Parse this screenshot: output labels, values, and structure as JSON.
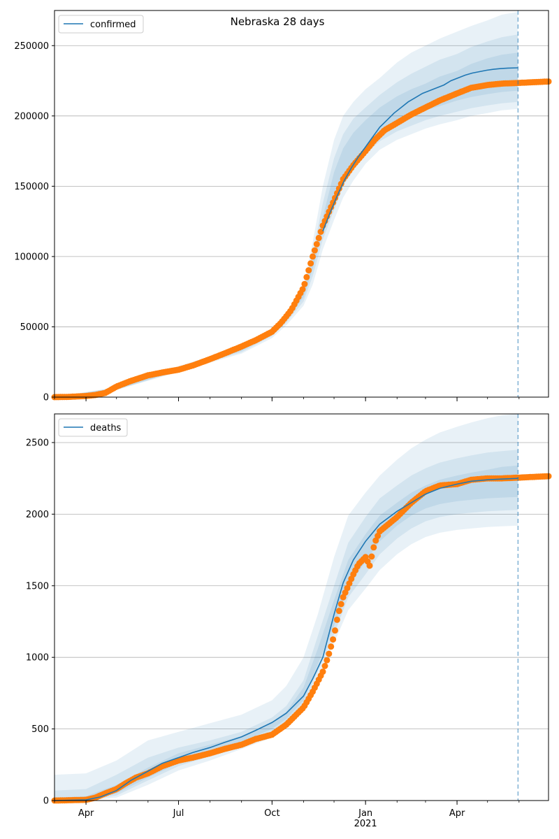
{
  "figure": {
    "title": "Nebraska 28 days"
  },
  "colors": {
    "model": "#1f77b4",
    "observed": "#ff7f0e",
    "grid": "#b0b0b0",
    "band": "#1f77b4"
  },
  "x_axis": {
    "start": "2020-03-01",
    "end": "2021-06-30",
    "forecast_date": "2021-05-31",
    "ticks": [
      {
        "date": "2020-04-01",
        "label": "Apr"
      },
      {
        "date": "2020-07-01",
        "label": "Jul"
      },
      {
        "date": "2020-10-01",
        "label": "Oct"
      },
      {
        "date": "2021-01-01",
        "label": "Jan"
      },
      {
        "date": "2021-04-01",
        "label": "Apr"
      }
    ],
    "year_label": {
      "date": "2021-01-01",
      "label": "2021"
    }
  },
  "chart_data": [
    {
      "type": "line",
      "legend": "confirmed",
      "legend_position": "upper left",
      "ylim": [
        0,
        275000
      ],
      "yticks": [
        0,
        50000,
        100000,
        150000,
        200000,
        250000
      ],
      "grid": "horizontal",
      "model": {
        "dates": [
          "2020-11-20",
          "2020-11-27",
          "2020-12-04",
          "2020-12-11",
          "2020-12-18",
          "2020-12-25",
          "2021-01-01",
          "2021-01-08",
          "2021-01-15",
          "2021-01-22",
          "2021-01-29",
          "2021-02-05",
          "2021-02-12",
          "2021-02-19",
          "2021-02-26",
          "2021-03-05",
          "2021-03-12",
          "2021-03-19",
          "2021-03-26",
          "2021-04-02",
          "2021-04-09",
          "2021-04-16",
          "2021-04-23",
          "2021-04-30",
          "2021-05-07",
          "2021-05-14",
          "2021-05-21",
          "2021-05-31"
        ],
        "median": [
          118000,
          131000,
          143000,
          154000,
          163000,
          171000,
          178000,
          185000,
          192000,
          197000,
          202000,
          206000,
          210000,
          213000,
          216000,
          218000,
          220000,
          222000,
          225000,
          227000,
          229000,
          230500,
          231500,
          232500,
          233200,
          233700,
          234000,
          234200
        ]
      },
      "bands": [
        {
          "dates": [
            "2020-03-01",
            "2020-05-01",
            "2020-07-01",
            "2020-09-01",
            "2020-10-01",
            "2020-10-15",
            "2020-11-01",
            "2020-11-10",
            "2020-11-20",
            "2020-12-01",
            "2020-12-10",
            "2020-12-20",
            "2021-01-01",
            "2021-01-15",
            "2021-02-01",
            "2021-02-15",
            "2021-03-01",
            "2021-03-15",
            "2021-04-01",
            "2021-04-15",
            "2021-05-01",
            "2021-05-15",
            "2021-05-31"
          ],
          "lower": [
            0,
            5000,
            18000,
            31000,
            42000,
            51000,
            65000,
            80000,
            105000,
            126000,
            142000,
            154000,
            166000,
            176000,
            183000,
            187000,
            191000,
            194000,
            197000,
            200000,
            202000,
            204000,
            205000
          ],
          "upper": [
            0,
            7000,
            22000,
            36000,
            49000,
            60000,
            79000,
            110000,
            150000,
            183000,
            200000,
            210000,
            219000,
            227000,
            238000,
            245000,
            250000,
            255000,
            260000,
            264000,
            268000,
            272000,
            274000
          ]
        },
        {
          "dates": [
            "2020-03-01",
            "2020-05-01",
            "2020-07-01",
            "2020-09-01",
            "2020-10-01",
            "2020-10-15",
            "2020-11-01",
            "2020-11-10",
            "2020-11-20",
            "2020-12-01",
            "2020-12-10",
            "2020-12-20",
            "2021-01-01",
            "2021-01-15",
            "2021-02-01",
            "2021-02-15",
            "2021-03-01",
            "2021-03-15",
            "2021-04-01",
            "2021-04-15",
            "2021-05-01",
            "2021-05-15",
            "2021-05-31"
          ],
          "lower": [
            0,
            5200,
            18500,
            32000,
            43500,
            53000,
            68000,
            86000,
            112000,
            133000,
            150000,
            162000,
            173000,
            182000,
            189000,
            193000,
            197000,
            200000,
            203000,
            205500,
            207500,
            209000,
            210000
          ],
          "upper": [
            0,
            6800,
            21500,
            35000,
            47500,
            58000,
            76000,
            102000,
            138000,
            170000,
            187000,
            198000,
            206000,
            215000,
            224000,
            230000,
            235000,
            240000,
            244000,
            249000,
            253000,
            256000,
            258000
          ]
        },
        {
          "dates": [
            "2020-03-01",
            "2020-05-01",
            "2020-07-01",
            "2020-09-01",
            "2020-10-01",
            "2020-10-15",
            "2020-11-01",
            "2020-11-10",
            "2020-11-20",
            "2020-12-01",
            "2020-12-10",
            "2020-12-20",
            "2021-01-01",
            "2021-01-15",
            "2021-02-01",
            "2021-02-15",
            "2021-03-01",
            "2021-03-15",
            "2021-04-01",
            "2021-04-15",
            "2021-05-01",
            "2021-05-15",
            "2021-05-31"
          ],
          "lower": [
            0,
            5500,
            19000,
            33000,
            45000,
            55000,
            71000,
            91000,
            118000,
            140000,
            157000,
            168000,
            179000,
            189000,
            196000,
            200000,
            204000,
            207000,
            211000,
            213500,
            215500,
            217000,
            218000
          ],
          "upper": [
            0,
            6500,
            21000,
            34000,
            46500,
            56500,
            73500,
            96000,
            128000,
            160000,
            177000,
            188000,
            197000,
            206000,
            214000,
            219000,
            223000,
            228000,
            232000,
            237000,
            241000,
            243500,
            245000
          ]
        }
      ],
      "observed": {
        "dates": [
          "2020-03-01",
          "2020-03-15",
          "2020-04-01",
          "2020-04-10",
          "2020-04-20",
          "2020-05-01",
          "2020-05-15",
          "2020-06-01",
          "2020-06-15",
          "2020-07-01",
          "2020-07-15",
          "2020-08-01",
          "2020-08-15",
          "2020-09-01",
          "2020-09-15",
          "2020-10-01",
          "2020-10-10",
          "2020-10-20",
          "2020-11-01",
          "2020-11-10",
          "2020-11-20",
          "2020-12-01",
          "2020-12-10",
          "2020-12-20",
          "2021-01-01",
          "2021-01-10",
          "2021-01-20",
          "2021-02-01",
          "2021-02-15",
          "2021-03-01",
          "2021-03-15",
          "2021-04-01",
          "2021-04-15",
          "2021-05-01",
          "2021-05-15",
          "2021-06-01",
          "2021-06-15",
          "2021-06-30"
        ],
        "values": [
          0,
          200,
          800,
          1500,
          3000,
          7500,
          11500,
          15500,
          17500,
          19500,
          22500,
          27000,
          31000,
          36000,
          40500,
          46500,
          53000,
          62000,
          78000,
          100000,
          122000,
          140000,
          155000,
          165000,
          175000,
          183000,
          190000,
          195000,
          201000,
          206000,
          211000,
          216000,
          220000,
          222000,
          223000,
          223500,
          224000,
          224500
        ]
      }
    },
    {
      "type": "line",
      "legend": "deaths",
      "legend_position": "upper left",
      "ylim": [
        0,
        2700
      ],
      "yticks": [
        0,
        500,
        1000,
        1500,
        2000,
        2500
      ],
      "grid": "horizontal",
      "model": {
        "dates": [
          "2020-03-01",
          "2020-04-01",
          "2020-04-15",
          "2020-05-01",
          "2020-05-15",
          "2020-06-01",
          "2020-06-15",
          "2020-07-01",
          "2020-07-15",
          "2020-08-01",
          "2020-08-15",
          "2020-09-01",
          "2020-09-15",
          "2020-10-01",
          "2020-10-15",
          "2020-11-01",
          "2020-11-10",
          "2020-11-20",
          "2020-12-01",
          "2020-12-10",
          "2020-12-20",
          "2021-01-01",
          "2021-01-15",
          "2021-02-01",
          "2021-02-15",
          "2021-03-01",
          "2021-03-15",
          "2021-04-01",
          "2021-04-15",
          "2021-05-01",
          "2021-05-15",
          "2021-05-31"
        ],
        "median": [
          0,
          5,
          25,
          70,
          140,
          205,
          260,
          300,
          335,
          370,
          405,
          445,
          490,
          545,
          610,
          730,
          850,
          1000,
          1300,
          1520,
          1680,
          1810,
          1930,
          2020,
          2080,
          2140,
          2180,
          2210,
          2230,
          2240,
          2245,
          2250
        ]
      },
      "bands": [
        {
          "dates": [
            "2020-03-01",
            "2020-04-01",
            "2020-05-01",
            "2020-06-01",
            "2020-07-01",
            "2020-08-01",
            "2020-09-01",
            "2020-10-01",
            "2020-10-15",
            "2020-11-01",
            "2020-11-15",
            "2020-12-01",
            "2020-12-15",
            "2021-01-01",
            "2021-01-15",
            "2021-02-01",
            "2021-02-15",
            "2021-03-01",
            "2021-03-15",
            "2021-04-01",
            "2021-04-15",
            "2021-05-01",
            "2021-05-15",
            "2021-05-31"
          ],
          "lower": [
            0,
            0,
            20,
            110,
            210,
            280,
            360,
            440,
            510,
            640,
            840,
            1100,
            1330,
            1480,
            1610,
            1720,
            1790,
            1840,
            1870,
            1890,
            1900,
            1910,
            1915,
            1920
          ],
          "upper": [
            180,
            190,
            280,
            420,
            480,
            540,
            600,
            700,
            800,
            1000,
            1300,
            1700,
            1990,
            2150,
            2270,
            2380,
            2460,
            2520,
            2570,
            2610,
            2640,
            2670,
            2690,
            2700
          ]
        },
        {
          "dates": [
            "2020-03-01",
            "2020-04-01",
            "2020-05-01",
            "2020-06-01",
            "2020-07-01",
            "2020-08-01",
            "2020-09-01",
            "2020-10-01",
            "2020-10-15",
            "2020-11-01",
            "2020-11-15",
            "2020-12-01",
            "2020-12-15",
            "2021-01-01",
            "2021-01-15",
            "2021-02-01",
            "2021-02-15",
            "2021-03-01",
            "2021-03-15",
            "2021-04-01",
            "2021-04-15",
            "2021-05-01",
            "2021-05-15",
            "2021-05-31"
          ],
          "lower": [
            0,
            0,
            35,
            140,
            240,
            310,
            390,
            470,
            540,
            670,
            900,
            1160,
            1420,
            1580,
            1720,
            1830,
            1900,
            1950,
            1980,
            2000,
            2010,
            2020,
            2025,
            2030
          ],
          "upper": [
            70,
            80,
            180,
            300,
            370,
            420,
            480,
            580,
            660,
            840,
            1150,
            1500,
            1800,
            1980,
            2110,
            2200,
            2270,
            2320,
            2360,
            2390,
            2410,
            2430,
            2440,
            2450
          ]
        },
        {
          "dates": [
            "2020-03-01",
            "2020-04-01",
            "2020-05-01",
            "2020-06-01",
            "2020-07-01",
            "2020-08-01",
            "2020-09-01",
            "2020-10-01",
            "2020-10-15",
            "2020-11-01",
            "2020-11-15",
            "2020-12-01",
            "2020-12-15",
            "2021-01-01",
            "2021-01-15",
            "2021-02-01",
            "2021-02-15",
            "2021-03-01",
            "2021-03-15",
            "2021-04-01",
            "2021-04-15",
            "2021-05-01",
            "2021-05-15",
            "2021-05-31"
          ],
          "lower": [
            0,
            0,
            50,
            160,
            260,
            330,
            410,
            500,
            570,
            700,
            950,
            1220,
            1490,
            1670,
            1810,
            1920,
            1990,
            2040,
            2070,
            2090,
            2100,
            2110,
            2115,
            2120
          ],
          "upper": [
            20,
            30,
            110,
            230,
            330,
            390,
            450,
            550,
            620,
            790,
            1060,
            1400,
            1680,
            1860,
            1990,
            2080,
            2150,
            2200,
            2240,
            2270,
            2290,
            2310,
            2330,
            2340
          ]
        }
      ],
      "observed": {
        "dates": [
          "2020-03-01",
          "2020-04-01",
          "2020-04-10",
          "2020-04-20",
          "2020-05-01",
          "2020-05-10",
          "2020-05-20",
          "2020-06-01",
          "2020-06-15",
          "2020-07-01",
          "2020-07-15",
          "2020-08-01",
          "2020-08-15",
          "2020-09-01",
          "2020-09-15",
          "2020-10-01",
          "2020-10-15",
          "2020-11-01",
          "2020-11-10",
          "2020-11-20",
          "2020-11-25",
          "2020-12-01",
          "2020-12-05",
          "2020-12-10",
          "2020-12-15",
          "2020-12-20",
          "2020-12-25",
          "2021-01-01",
          "2021-01-05",
          "2021-01-10",
          "2021-01-15",
          "2021-02-01",
          "2021-02-15",
          "2021-03-01",
          "2021-03-15",
          "2021-04-01",
          "2021-04-15",
          "2021-05-01",
          "2021-05-15",
          "2021-06-01",
          "2021-06-15",
          "2021-06-30"
        ],
        "values": [
          0,
          5,
          20,
          50,
          80,
          120,
          160,
          190,
          240,
          280,
          300,
          330,
          360,
          390,
          430,
          460,
          530,
          650,
          760,
          900,
          1000,
          1150,
          1300,
          1420,
          1500,
          1580,
          1650,
          1700,
          1640,
          1800,
          1880,
          1980,
          2080,
          2160,
          2200,
          2210,
          2240,
          2250,
          2250,
          2255,
          2260,
          2265
        ]
      }
    }
  ]
}
